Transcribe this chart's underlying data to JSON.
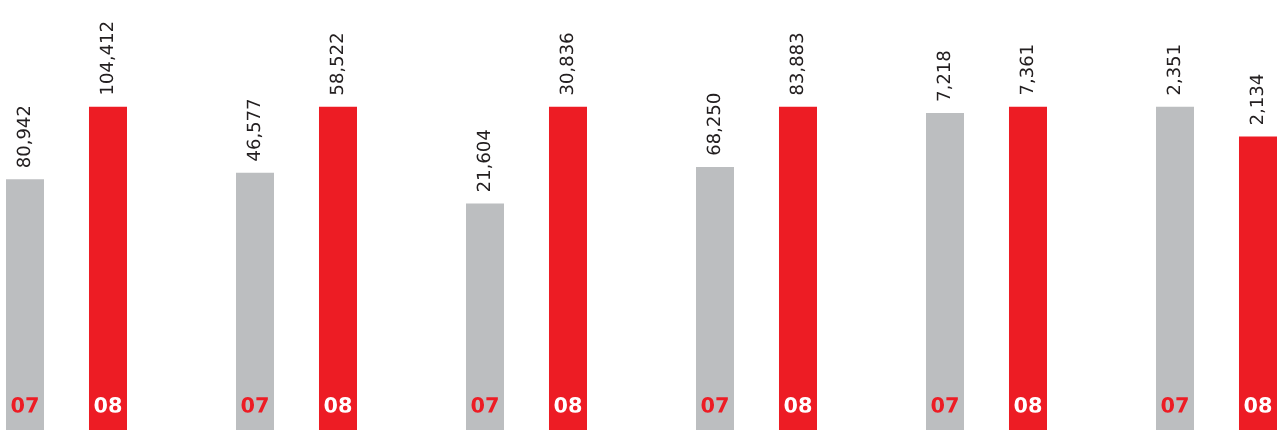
{
  "chart_data": [
    {
      "type": "bar",
      "categories": [
        "07",
        "08"
      ],
      "values": [
        80942,
        104412
      ],
      "value_labels": [
        "80,942",
        "104,412"
      ],
      "colors": [
        "#bcbec0",
        "#ed1c24"
      ],
      "grid": false,
      "legend": false
    },
    {
      "type": "bar",
      "categories": [
        "07",
        "08"
      ],
      "values": [
        46577,
        58522
      ],
      "value_labels": [
        "46,577",
        "58,522"
      ],
      "colors": [
        "#bcbec0",
        "#ed1c24"
      ],
      "grid": false,
      "legend": false
    },
    {
      "type": "bar",
      "categories": [
        "07",
        "08"
      ],
      "values": [
        21604,
        30836
      ],
      "value_labels": [
        "21,604",
        "30,836"
      ],
      "colors": [
        "#bcbec0",
        "#ed1c24"
      ],
      "grid": false,
      "legend": false
    },
    {
      "type": "bar",
      "categories": [
        "07",
        "08"
      ],
      "values": [
        68250,
        83883
      ],
      "value_labels": [
        "68,250",
        "83,883"
      ],
      "colors": [
        "#bcbec0",
        "#ed1c24"
      ],
      "grid": false,
      "legend": false
    },
    {
      "type": "bar",
      "categories": [
        "07",
        "08"
      ],
      "values": [
        7218,
        7361
      ],
      "value_labels": [
        "7,218",
        "7,361"
      ],
      "colors": [
        "#bcbec0",
        "#ed1c24"
      ],
      "grid": false,
      "legend": false
    },
    {
      "type": "bar",
      "categories": [
        "07",
        "08"
      ],
      "values": [
        2351,
        2134
      ],
      "value_labels": [
        "2,351",
        "2,134"
      ],
      "colors": [
        "#bcbec0",
        "#ed1c24"
      ],
      "grid": false,
      "legend": false
    }
  ]
}
